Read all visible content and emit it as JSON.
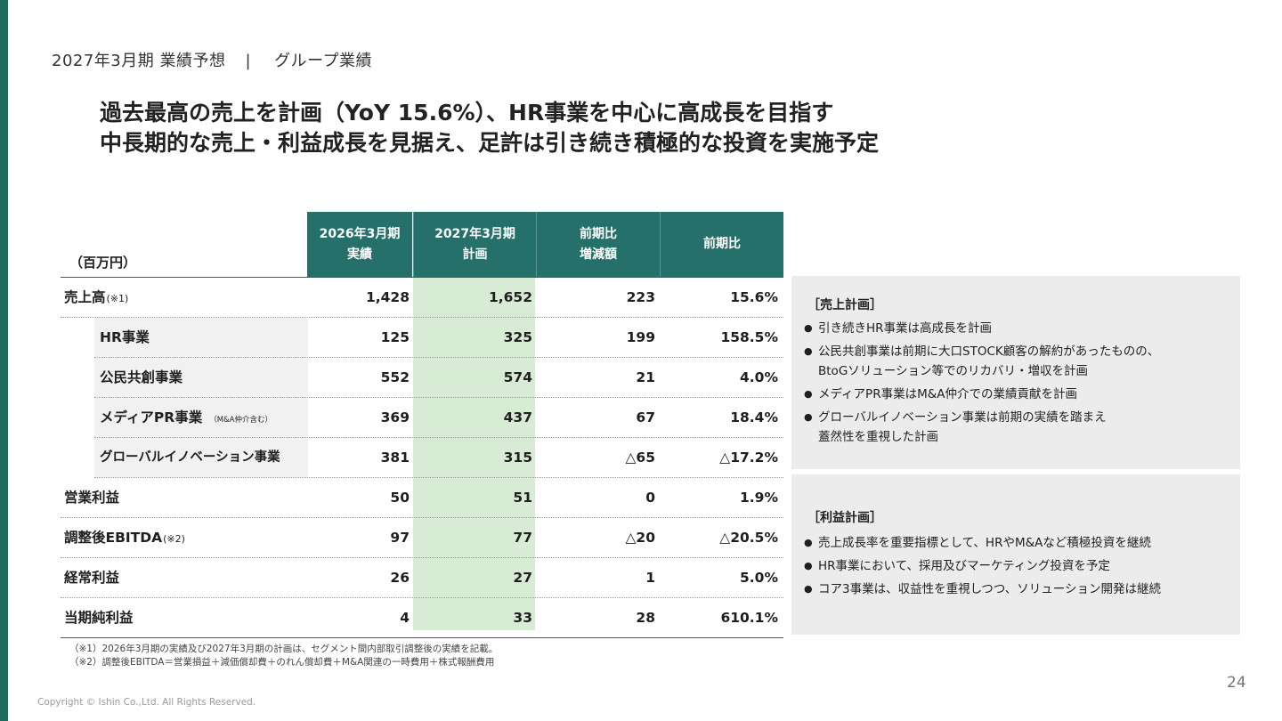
{
  "header": {
    "section": "2027年3月期 業績予想",
    "divider": "|",
    "subsection": "グループ業績"
  },
  "headline": {
    "line1": "過去最高の売上を計画（YoY 15.6%）、HR事業を中心に高成長を目指す",
    "line2": "中長期的な売上・利益成長を見据え、足許は引き続き積極的な投資を実施予定"
  },
  "table": {
    "unit": "（百万円）",
    "columns": [
      {
        "line1": "2026年3月期",
        "line2": "実績"
      },
      {
        "line1": "2027年3月期",
        "line2": "計画"
      },
      {
        "line1": "前期比",
        "line2": "増減額"
      },
      {
        "line1": "前期比",
        "line2": ""
      }
    ],
    "rows": [
      {
        "label": "売上高",
        "note": "(※1)",
        "v1": "1,428",
        "v2": "1,652",
        "v3": "223",
        "v4": "15.6%"
      },
      {
        "label": "HR事業",
        "note": "",
        "v1": "125",
        "v2": "325",
        "v3": "199",
        "v4": "158.5%"
      },
      {
        "label": "公民共創事業",
        "note": "",
        "v1": "552",
        "v2": "574",
        "v3": "21",
        "v4": "4.0%"
      },
      {
        "label": "メディアPR事業",
        "note": "（M&A仲介含む）",
        "v1": "369",
        "v2": "437",
        "v3": "67",
        "v4": "18.4%"
      },
      {
        "label": "グローバルイノベーション事業",
        "note": "",
        "v1": "381",
        "v2": "315",
        "v3": "△65",
        "v4": "△17.2%"
      },
      {
        "label": "営業利益",
        "note": "",
        "v1": "50",
        "v2": "51",
        "v3": "0",
        "v4": "1.9%"
      },
      {
        "label": "調整後EBITDA",
        "note": "(※2)",
        "v1": "97",
        "v2": "77",
        "v3": "△20",
        "v4": "△20.5%"
      },
      {
        "label": "経常利益",
        "note": "",
        "v1": "26",
        "v2": "27",
        "v3": "1",
        "v4": "5.0%"
      },
      {
        "label": "当期純利益",
        "note": "",
        "v1": "4",
        "v2": "33",
        "v3": "28",
        "v4": "610.1%"
      }
    ]
  },
  "sales_plan": {
    "title": "［売上計画］",
    "items": [
      "引き続きHR事業は高成長を計画",
      "公民共創事業は前期に大口STOCK顧客の解約があったものの、\nBtoGソリューション等でのリカバリ・増収を計画",
      "メディアPR事業はM&A仲介での業績貢献を計画",
      "グローバルイノベーション事業は前期の実績を踏まえ\n蓋然性を重視した計画"
    ]
  },
  "profit_plan": {
    "title": "［利益計画］",
    "items": [
      "売上成長率を重要指標として、HRやM&Aなど積極投資を継続",
      "HR事業において、採用及びマーケティング投資を予定",
      "コア3事業は、収益性を重視しつつ、ソリューション開発は継続"
    ]
  },
  "footnotes": {
    "note1": "（※1）2026年3月期の実績及び2027年3月期の計画は、セグメント間内部取引調整後の実績を記載。",
    "note2": "（※2）調整後EBITDA＝営業損益＋減価償却費＋のれん償却費＋M&A関連の一時費用＋株式報酬費用"
  },
  "page_number": "24",
  "copyright": "Copyright © Ishin Co.,Ltd. All Rights Reserved.",
  "colors": {
    "accent": "#1e6b5e",
    "header_cell": "#25706a",
    "plan_column": "#d8ebd4",
    "panel": "#ececec"
  }
}
